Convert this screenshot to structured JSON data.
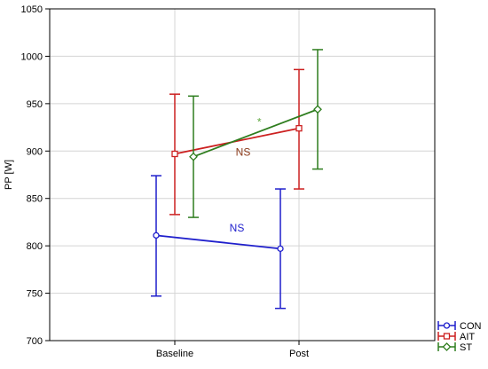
{
  "chart_data": {
    "type": "line",
    "title": "",
    "xlabel": "",
    "ylabel": "PP [W]",
    "categories": [
      "Baseline",
      "Post"
    ],
    "ylim": [
      700,
      1050
    ],
    "yticks": [
      700,
      750,
      800,
      850,
      900,
      950,
      1000,
      1050
    ],
    "grid": true,
    "legend_position": "bottom-right",
    "series": [
      {
        "name": "CON",
        "color": "#1f1fcc",
        "marker": "circle",
        "values": [
          811,
          797
        ],
        "err_low": [
          747,
          734
        ],
        "err_high": [
          874,
          860
        ]
      },
      {
        "name": "AIT",
        "color": "#cc2020",
        "marker": "square",
        "values": [
          897,
          924
        ],
        "err_low": [
          833,
          860
        ],
        "err_high": [
          960,
          986
        ]
      },
      {
        "name": "ST",
        "color": "#2e7d1e",
        "marker": "diamond",
        "values": [
          894,
          944
        ],
        "err_low": [
          830,
          881
        ],
        "err_high": [
          958,
          1007
        ]
      }
    ],
    "annotations": [
      {
        "text": "NS",
        "color": "#1f1fcc",
        "x": 1.5,
        "y": 815
      },
      {
        "text": "NS",
        "color": "#8b3a1a",
        "x": 1.55,
        "y": 895
      },
      {
        "text": "*",
        "color": "#5fa83f",
        "x": 1.68,
        "y": 927
      }
    ]
  }
}
